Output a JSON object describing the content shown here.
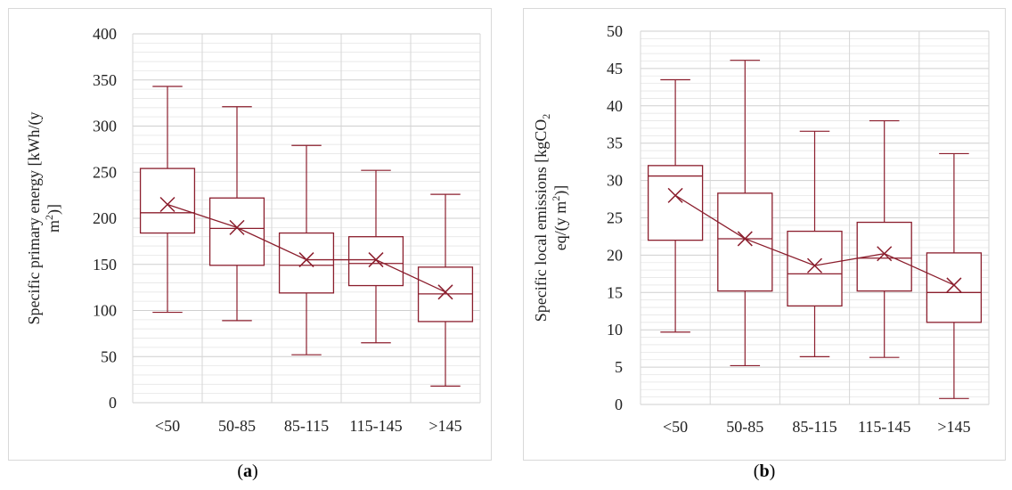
{
  "chart_data": [
    {
      "type": "boxplot",
      "panel_label": "a",
      "ylabel_line1": "Specific primary energy [kWh/(y",
      "ylabel_line2": "m",
      "ylabel_sup": "2",
      "ylabel_end": ")]",
      "ylim": [
        0,
        400
      ],
      "yticks": [
        0,
        50,
        100,
        150,
        200,
        250,
        300,
        350,
        400
      ],
      "minor_step": 10,
      "grid": true,
      "color": "#8b1e2d",
      "categories": [
        "<50",
        "50-85",
        "85-115",
        "115-145",
        ">145"
      ],
      "boxes": [
        {
          "min": 98,
          "q1": 184,
          "median": 206,
          "q3": 254,
          "max": 343,
          "mean": 215
        },
        {
          "min": 89,
          "q1": 149,
          "median": 189,
          "q3": 222,
          "max": 321,
          "mean": 190
        },
        {
          "min": 52,
          "q1": 119,
          "median": 149,
          "q3": 184,
          "max": 279,
          "mean": 155
        },
        {
          "min": 65,
          "q1": 127,
          "median": 151,
          "q3": 180,
          "max": 252,
          "mean": 155
        },
        {
          "min": 18,
          "q1": 88,
          "median": 118,
          "q3": 147,
          "max": 226,
          "mean": 120
        }
      ]
    },
    {
      "type": "boxplot",
      "panel_label": "b",
      "ylabel_line1": "Specific local emissions [kgCO",
      "ylabel_sub": "2",
      "ylabel_line2": "eq/(y m",
      "ylabel_sup": "2",
      "ylabel_end": ")]",
      "ylim": [
        0,
        50
      ],
      "yticks": [
        0,
        5,
        10,
        15,
        20,
        25,
        30,
        35,
        40,
        45,
        50
      ],
      "minor_step": 1,
      "grid": true,
      "color": "#8b1e2d",
      "categories": [
        "<50",
        "50-85",
        "85-115",
        "115-145",
        ">145"
      ],
      "boxes": [
        {
          "min": 9.7,
          "q1": 22,
          "median": 30.6,
          "q3": 32,
          "max": 43.5,
          "mean": 28
        },
        {
          "min": 5.2,
          "q1": 15.2,
          "median": 22.2,
          "q3": 28.3,
          "max": 46.1,
          "mean": 22.2
        },
        {
          "min": 6.4,
          "q1": 13.2,
          "median": 17.5,
          "q3": 23.2,
          "max": 36.6,
          "mean": 18.6
        },
        {
          "min": 6.3,
          "q1": 15.2,
          "median": 19.6,
          "q3": 24.4,
          "max": 38,
          "mean": 20.2
        },
        {
          "min": 0.8,
          "q1": 11,
          "median": 15,
          "q3": 20.3,
          "max": 33.6,
          "mean": 16
        }
      ]
    }
  ]
}
